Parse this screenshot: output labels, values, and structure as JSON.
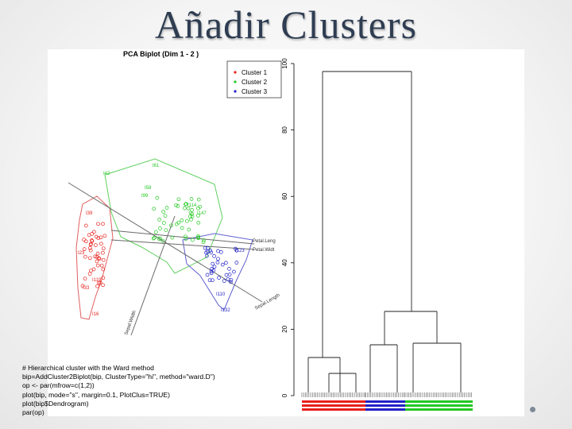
{
  "slide": {
    "title": "Añadir Clusters"
  },
  "biplot": {
    "title": "PCA Biplot (Dim 1 - 2 )",
    "legend": [
      {
        "label": "Cluster 1",
        "color": "#e8201c"
      },
      {
        "label": "Cluster 2",
        "color": "#22c822"
      },
      {
        "label": "Cluster 3",
        "color": "#2020c8"
      }
    ],
    "variables": [
      "Petal.Leng",
      "Petal.Widt",
      "Sepal.Length",
      "Sepal.Width"
    ],
    "labeled_points": [
      "I61",
      "I42",
      "I16",
      "I110",
      "I132",
      "I123",
      "I23",
      "I33",
      "I119",
      "I147",
      "I114",
      "I39",
      "I58",
      "I99"
    ]
  },
  "dendrogram": {
    "y_ticks": [
      "0",
      "20",
      "40",
      "60",
      "80",
      "100"
    ],
    "cluster_colors": {
      "c1": "#e8201c",
      "c2": "#22c822",
      "c3": "#2020c8"
    }
  },
  "code_lines": [
    "# Hierarchical cluster with the Ward method",
    "bip=AddCluster2Biplot(bip, ClusterType=\"hi\", method=\"ward.D\")",
    "op <- par(mfrow=c(1,2))",
    "plot(bip, mode=\"s\", margin=0.1, PlotClus=TRUE)",
    "plot(bip$Dendrogram)",
    "par(op)"
  ]
}
